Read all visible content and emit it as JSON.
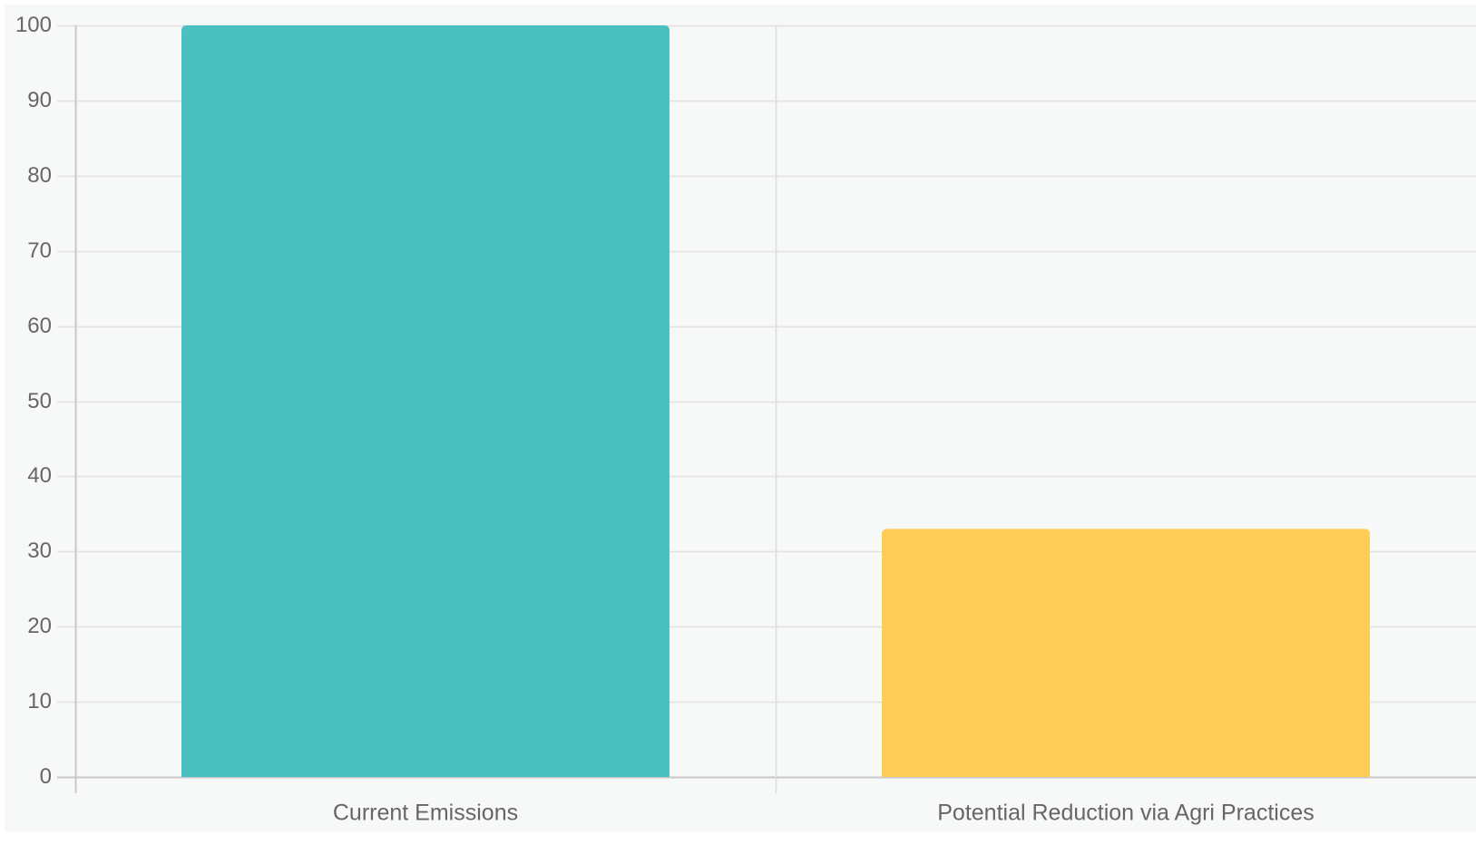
{
  "chart_data": {
    "type": "bar",
    "categories": [
      "Current Emissions",
      "Potential Reduction via Agri Practices"
    ],
    "values": [
      100,
      33
    ],
    "colors": [
      "#4bc0c0",
      "#ffcd56"
    ],
    "title": "",
    "xlabel": "",
    "ylabel": "",
    "ylim": [
      0,
      100
    ],
    "yticks": [
      0,
      10,
      20,
      30,
      40,
      50,
      60,
      70,
      80,
      90,
      100
    ],
    "ytick_labels": [
      "0",
      "10",
      "20",
      "30",
      "40",
      "50",
      "60",
      "70",
      "80",
      "90",
      "100"
    ],
    "grid": true,
    "legend": "none"
  }
}
